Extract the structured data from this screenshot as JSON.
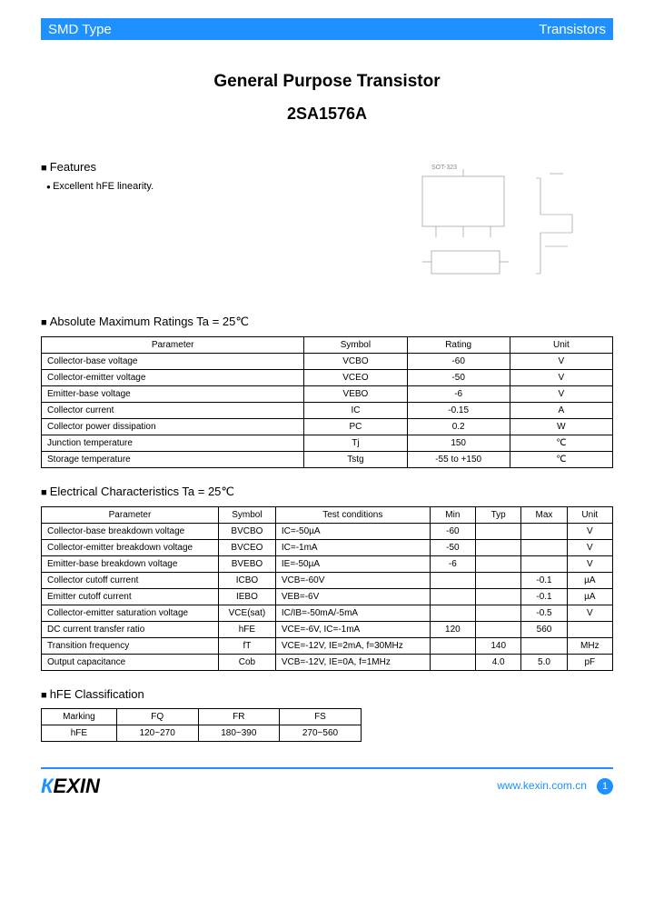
{
  "header": {
    "left": "SMD Type",
    "right": "Transistors"
  },
  "title": {
    "line1": "General Purpose Transistor",
    "line2": "2SA1576A"
  },
  "features": {
    "heading": "Features",
    "items": [
      "Excellent hFE linearity."
    ]
  },
  "package_labels": {
    "top": "SOT-323",
    "right": ""
  },
  "abs_max": {
    "heading": "Absolute Maximum Ratings Ta = 25℃",
    "columns": [
      "Parameter",
      "Symbol",
      "Rating",
      "Unit"
    ],
    "rows": [
      [
        "Collector-base voltage",
        "VCBO",
        "-60",
        "V"
      ],
      [
        "Collector-emitter voltage",
        "VCEO",
        "-50",
        "V"
      ],
      [
        "Emitter-base voltage",
        "VEBO",
        "-6",
        "V"
      ],
      [
        "Collector current",
        "IC",
        "-0.15",
        "A"
      ],
      [
        "Collector power dissipation",
        "PC",
        "0.2",
        "W"
      ],
      [
        "Junction temperature",
        "Tj",
        "150",
        "℃"
      ],
      [
        "Storage temperature",
        "Tstg",
        "-55 to +150",
        "℃"
      ]
    ],
    "col_widths": [
      "46%",
      "18%",
      "18%",
      "18%"
    ]
  },
  "elec": {
    "heading": "Electrical Characteristics Ta = 25℃",
    "columns": [
      "Parameter",
      "Symbol",
      "Test conditions",
      "Min",
      "Typ",
      "Max",
      "Unit"
    ],
    "rows": [
      [
        "Collector-base breakdown voltage",
        "BVCBO",
        "IC=-50µA",
        "-60",
        "",
        "",
        "V"
      ],
      [
        "Collector-emitter breakdown voltage",
        "BVCEO",
        "IC=-1mA",
        "-50",
        "",
        "",
        "V"
      ],
      [
        "Emitter-base breakdown voltage",
        "BVEBO",
        "IE=-50µA",
        "-6",
        "",
        "",
        "V"
      ],
      [
        "Collector cutoff current",
        "ICBO",
        "VCB=-60V",
        "",
        "",
        "-0.1",
        "µA"
      ],
      [
        "Emitter cutoff current",
        "IEBO",
        "VEB=-6V",
        "",
        "",
        "-0.1",
        "µA"
      ],
      [
        "Collector-emitter saturation voltage",
        "VCE(sat)",
        "IC/IB=-50mA/-5mA",
        "",
        "",
        "-0.5",
        "V"
      ],
      [
        "DC current transfer ratio",
        "hFE",
        "VCE=-6V, IC=-1mA",
        "120",
        "",
        "560",
        ""
      ],
      [
        "Transition frequency",
        "fT",
        "VCE=-12V, IE=2mA, f=30MHz",
        "",
        "140",
        "",
        "MHz"
      ],
      [
        "Output capacitance",
        "Cob",
        "VCB=-12V, IE=0A, f=1MHz",
        "",
        "4.0",
        "5.0",
        "pF"
      ]
    ],
    "col_widths": [
      "31%",
      "10%",
      "27%",
      "8%",
      "8%",
      "8%",
      "8%"
    ]
  },
  "hfe": {
    "heading": "hFE Classification",
    "columns": [
      "Marking",
      "FQ",
      "FR",
      "FS"
    ],
    "rows": [
      [
        "hFE",
        "120~270",
        "180~390",
        "270~560"
      ]
    ]
  },
  "footer": {
    "brand": "KEXIN",
    "url": "www.kexin.com.cn",
    "page": "1"
  },
  "colors": {
    "accent": "#1e90ff",
    "text": "#000000",
    "bg": "#ffffff"
  }
}
